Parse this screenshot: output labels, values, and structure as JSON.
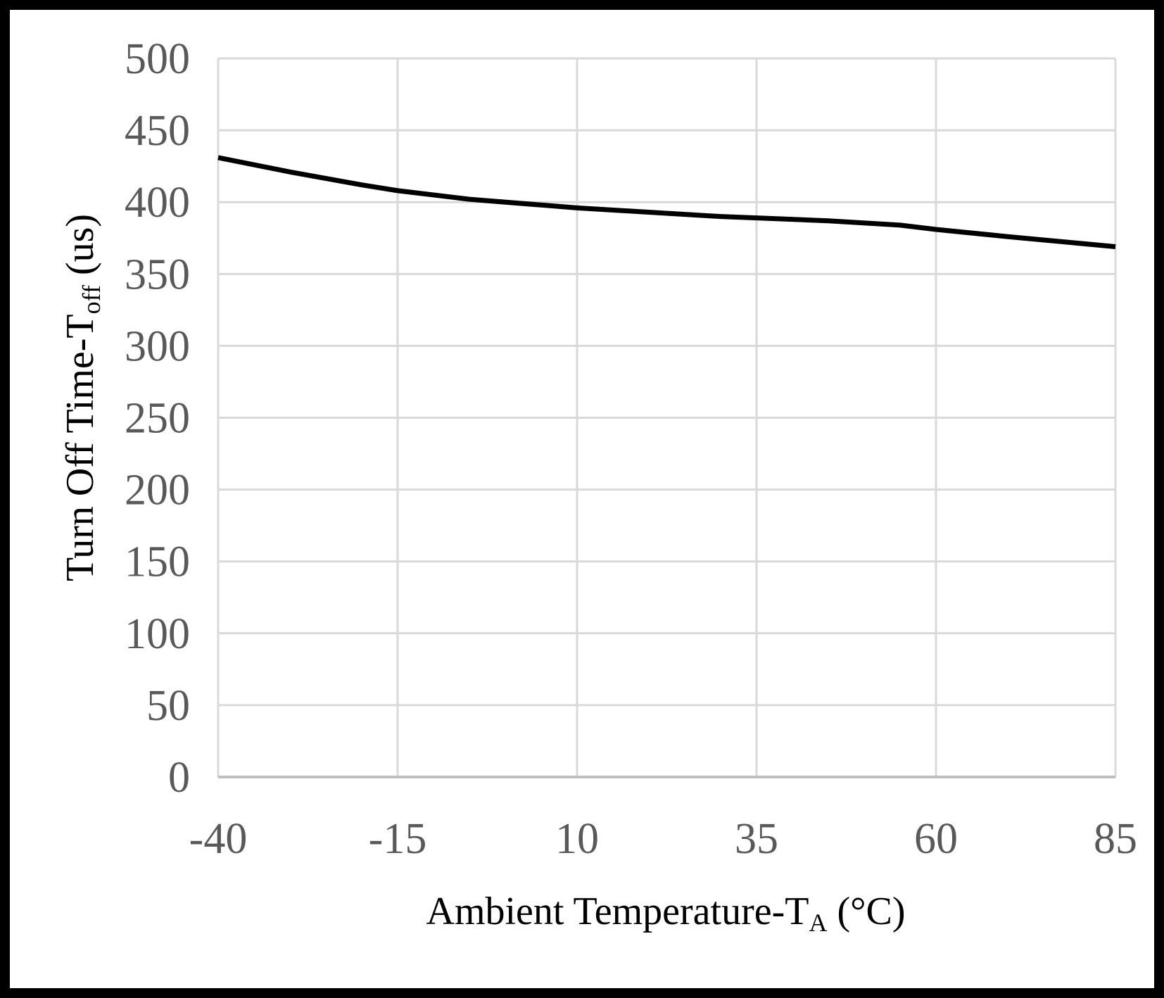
{
  "chart_data": {
    "type": "line",
    "title": "",
    "xlabel": {
      "main": "Ambient Temperature-T",
      "sub": "A",
      "unit": " (°C)"
    },
    "ylabel": {
      "main": "Turn Off  Time-T",
      "sub": "off",
      "unit": " (us)"
    },
    "xlim": [
      -40,
      85
    ],
    "ylim": [
      0,
      500
    ],
    "x_ticks": [
      "-40",
      "-15",
      "10",
      "35",
      "60",
      "85"
    ],
    "y_ticks": [
      "0",
      "50",
      "100",
      "150",
      "200",
      "250",
      "300",
      "350",
      "400",
      "450",
      "500"
    ],
    "grid": true,
    "series": [
      {
        "name": "Toff",
        "color": "#000000",
        "x": [
          -40,
          -30,
          -20,
          -15,
          -5,
          5,
          10,
          20,
          30,
          35,
          45,
          55,
          60,
          70,
          85
        ],
        "y": [
          431,
          421,
          412,
          408,
          402,
          398,
          396,
          393,
          390,
          389,
          387,
          384,
          381,
          376,
          369
        ]
      }
    ]
  }
}
